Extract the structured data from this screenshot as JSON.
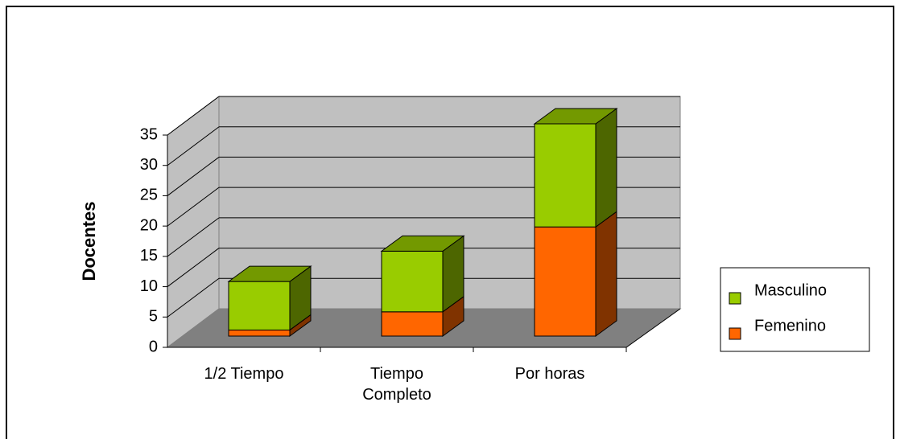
{
  "chart_data": {
    "type": "bar3d_stacked",
    "y_label": "Docentes",
    "categories": [
      "1/2 Tiempo",
      "Tiempo Completo",
      "Por horas"
    ],
    "series": [
      {
        "name": "Femenino",
        "color": "#ff6600",
        "values": [
          1,
          4,
          18
        ]
      },
      {
        "name": "Masculino",
        "color": "#99cc00",
        "values": [
          8,
          10,
          17
        ]
      }
    ],
    "ylim": [
      0,
      35
    ],
    "yticks": [
      0,
      5,
      10,
      15,
      20,
      25,
      30,
      35
    ],
    "grid": true,
    "legend": "right"
  }
}
